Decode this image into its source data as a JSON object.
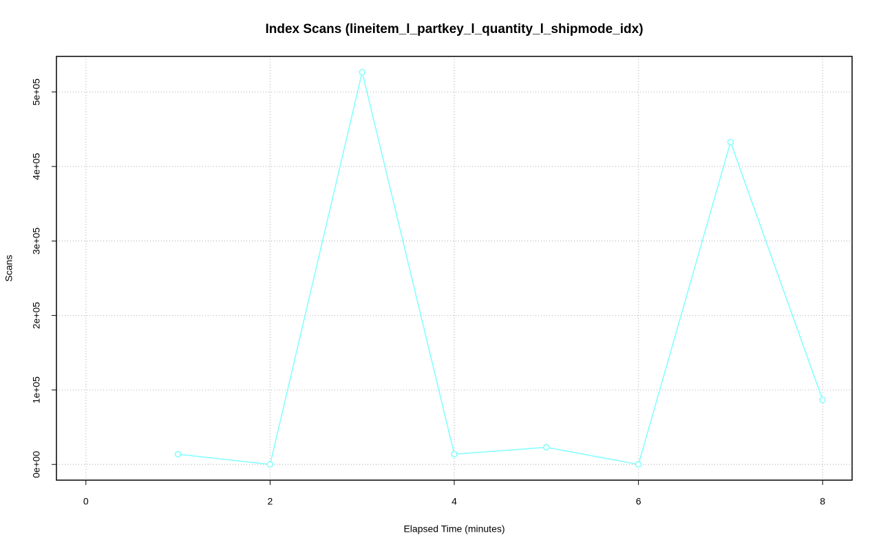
{
  "chart_data": {
    "type": "line",
    "title": "Index Scans (lineitem_l_partkey_l_quantity_l_shipmode_idx)",
    "x_label": "Elapsed Time (minutes)",
    "y_label": "Scans",
    "x": [
      1,
      2,
      3,
      4,
      5,
      6,
      7,
      8
    ],
    "series": [
      {
        "name": "Scans",
        "color": "#7fffff",
        "values": [
          13800,
          0,
          526700,
          13800,
          23000,
          0,
          432700,
          86700
        ]
      }
    ],
    "xlim": [
      -0.32,
      8.32
    ],
    "ylim": [
      -21068,
      547768
    ],
    "xticks": [
      0,
      2,
      4,
      6,
      8
    ],
    "yticks": [
      {
        "value": 0,
        "label": "0e+00"
      },
      {
        "value": 100000,
        "label": "1e+05"
      },
      {
        "value": 200000,
        "label": "2e+05"
      },
      {
        "value": 300000,
        "label": "3e+05"
      },
      {
        "value": 400000,
        "label": "4e+05"
      },
      {
        "value": 500000,
        "label": "5e+05"
      }
    ],
    "grid": true
  }
}
